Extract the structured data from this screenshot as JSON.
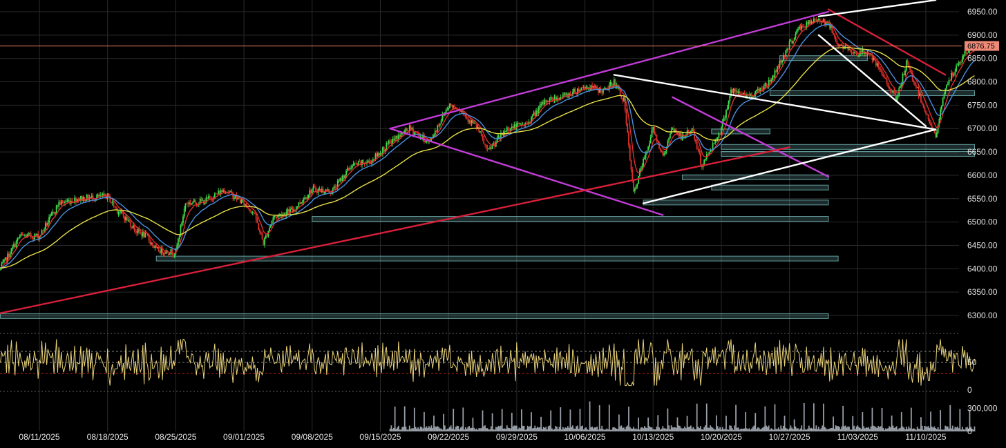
{
  "colors": {
    "background": "#000000",
    "grid": "#2a2a2a",
    "axis_text": "#e6e6e6",
    "candle_up": "#3ddc4a",
    "candle_down": "#e0302a",
    "ema_fast": "#e03030",
    "ema_mid": "#4a90e2",
    "sma_slow": "#e8e047",
    "trend_magenta": "#c23cd8",
    "trend_red": "#d8203a",
    "trend_white": "#ffffff",
    "zone": "#7fc8c8",
    "rsi_line": "#e8d27a",
    "rsi_mid": "#888888",
    "rsi_low": "#cc2020",
    "volume": "#9aa0a8",
    "price_line": "#f08060",
    "price_tag": "#f08a78"
  },
  "icons": {},
  "chart_data": [
    {
      "type": "candlestick",
      "panel": "price",
      "title": "",
      "xlabel": "",
      "ylabel": "",
      "ylim": [
        6250,
        6975
      ],
      "grid": true,
      "y_ticks": [
        "6300.00",
        "6350.00",
        "6400.00",
        "6450.00",
        "6500.00",
        "6550.00",
        "6600.00",
        "6650.00",
        "6700.00",
        "6750.00",
        "6800.00",
        "6850.00",
        "6900.00",
        "6950.00"
      ],
      "x_ticks": [
        "08/11/2025",
        "08/18/2025",
        "08/25/2025",
        "09/01/2025",
        "09/08/2025",
        "09/15/2025",
        "09/22/2025",
        "09/29/2025",
        "10/06/2025",
        "10/13/2025",
        "10/20/2025",
        "10/27/2025",
        "11/03/2025",
        "11/10/2025"
      ],
      "last_price": "6876.75",
      "close_path": [
        [
          "08/07/2025",
          6400
        ],
        [
          "08/09/2025",
          6470
        ],
        [
          "08/11/2025",
          6470
        ],
        [
          "08/13/2025",
          6540
        ],
        [
          "08/15/2025",
          6550
        ],
        [
          "08/18/2025",
          6555
        ],
        [
          "08/19/2025",
          6525
        ],
        [
          "08/20/2025",
          6505
        ],
        [
          "08/21/2025",
          6480
        ],
        [
          "08/22/2025",
          6470
        ],
        [
          "08/23/2025",
          6440
        ],
        [
          "08/25/2025",
          6435
        ],
        [
          "08/26/2025",
          6540
        ],
        [
          "08/28/2025",
          6545
        ],
        [
          "08/30/2025",
          6570
        ],
        [
          "09/01/2025",
          6540
        ],
        [
          "09/02/2025",
          6520
        ],
        [
          "09/03/2025",
          6455
        ],
        [
          "09/04/2025",
          6510
        ],
        [
          "09/06/2025",
          6525
        ],
        [
          "09/08/2025",
          6570
        ],
        [
          "09/10/2025",
          6565
        ],
        [
          "09/12/2025",
          6620
        ],
        [
          "09/14/2025",
          6630
        ],
        [
          "09/16/2025",
          6670
        ],
        [
          "09/18/2025",
          6700
        ],
        [
          "09/20/2025",
          6670
        ],
        [
          "09/22/2025",
          6750
        ],
        [
          "09/23/2025",
          6745
        ],
        [
          "09/25/2025",
          6700
        ],
        [
          "09/26/2025",
          6650
        ],
        [
          "09/28/2025",
          6700
        ],
        [
          "09/30/2025",
          6710
        ],
        [
          "10/02/2025",
          6760
        ],
        [
          "10/04/2025",
          6770
        ],
        [
          "10/06/2025",
          6790
        ],
        [
          "10/08/2025",
          6780
        ],
        [
          "10/09/2025",
          6800
        ],
        [
          "10/10/2025",
          6760
        ],
        [
          "10/11/2025",
          6560
        ],
        [
          "10/13/2025",
          6700
        ],
        [
          "10/14/2025",
          6640
        ],
        [
          "10/15/2025",
          6700
        ],
        [
          "10/16/2025",
          6680
        ],
        [
          "10/17/2025",
          6700
        ],
        [
          "10/18/2025",
          6620
        ],
        [
          "10/20/2025",
          6700
        ],
        [
          "10/21/2025",
          6780
        ],
        [
          "10/23/2025",
          6770
        ],
        [
          "10/25/2025",
          6800
        ],
        [
          "10/27/2025",
          6880
        ],
        [
          "10/28/2025",
          6915
        ],
        [
          "10/30/2025",
          6935
        ],
        [
          "10/31/2025",
          6925
        ],
        [
          "11/01/2025",
          6880
        ],
        [
          "11/03/2025",
          6860
        ],
        [
          "11/04/2025",
          6865
        ],
        [
          "11/06/2025",
          6800
        ],
        [
          "11/07/2025",
          6760
        ],
        [
          "11/08/2025",
          6840
        ],
        [
          "11/09/2025",
          6790
        ],
        [
          "11/11/2025",
          6680
        ],
        [
          "11/12/2025",
          6790
        ],
        [
          "11/14/2025",
          6860
        ],
        [
          "11/15/2025",
          6876.75
        ]
      ],
      "support_zones": [
        {
          "from": "10/26/2025",
          "to": "11/04/2025",
          "value": 6850
        },
        {
          "from": "10/25/2025",
          "to": "11/15/2025",
          "value": 6775
        },
        {
          "from": "10/19/2025",
          "to": "10/25/2025",
          "value": 6693
        },
        {
          "from": "10/20/2025",
          "to": "11/15/2025",
          "value": 6660
        },
        {
          "from": "10/20/2025",
          "to": "11/15/2025",
          "value": 6645
        },
        {
          "from": "10/16/2025",
          "to": "10/31/2025",
          "value": 6595
        },
        {
          "from": "10/19/2025",
          "to": "10/31/2025",
          "value": 6573
        },
        {
          "from": "10/12/2025",
          "to": "10/31/2025",
          "value": 6541
        },
        {
          "from": "09/08/2025",
          "to": "10/31/2025",
          "value": 6506
        },
        {
          "from": "08/23/2025",
          "to": "11/01/2025",
          "value": 6421
        },
        {
          "from": "08/07/2025",
          "to": "10/31/2025",
          "value": 6298
        }
      ],
      "trend_lines": [
        {
          "color": "magenta",
          "from": [
            "09/16/2025",
            6700
          ],
          "to": [
            "10/31/2025",
            6950
          ]
        },
        {
          "color": "magenta",
          "from": [
            "09/16/2025",
            6700
          ],
          "to": [
            "10/14/2025",
            6515
          ]
        },
        {
          "color": "magenta",
          "from": [
            "10/15/2025",
            6767
          ],
          "to": [
            "10/31/2025",
            6597
          ]
        },
        {
          "color": "red",
          "from": [
            "08/07/2025",
            6305
          ],
          "to": [
            "10/27/2025",
            6660
          ]
        },
        {
          "color": "red",
          "from": [
            "10/31/2025",
            6955
          ],
          "to": [
            "11/12/2025",
            6815
          ]
        },
        {
          "color": "white",
          "from": [
            "10/30/2025",
            6940
          ],
          "to": [
            "11/11/2025",
            6975
          ]
        },
        {
          "color": "white",
          "from": [
            "10/30/2025",
            6900
          ],
          "to": [
            "11/10/2025",
            6705
          ]
        },
        {
          "color": "white",
          "from": [
            "10/09/2025",
            6815
          ],
          "to": [
            "11/11/2025",
            6698
          ]
        },
        {
          "color": "white",
          "from": [
            "10/12/2025",
            6540
          ],
          "to": [
            "11/11/2025",
            6698
          ]
        }
      ]
    },
    {
      "type": "line",
      "panel": "oscillator",
      "title": "",
      "series": [],
      "y_ticks": [
        "50",
        "0"
      ],
      "reference_lines": [
        70,
        50,
        30
      ]
    },
    {
      "type": "bar",
      "panel": "volume",
      "title": "",
      "y_ticks": [
        "300,000",
        "0"
      ],
      "ylim": [
        0,
        450000
      ]
    }
  ]
}
